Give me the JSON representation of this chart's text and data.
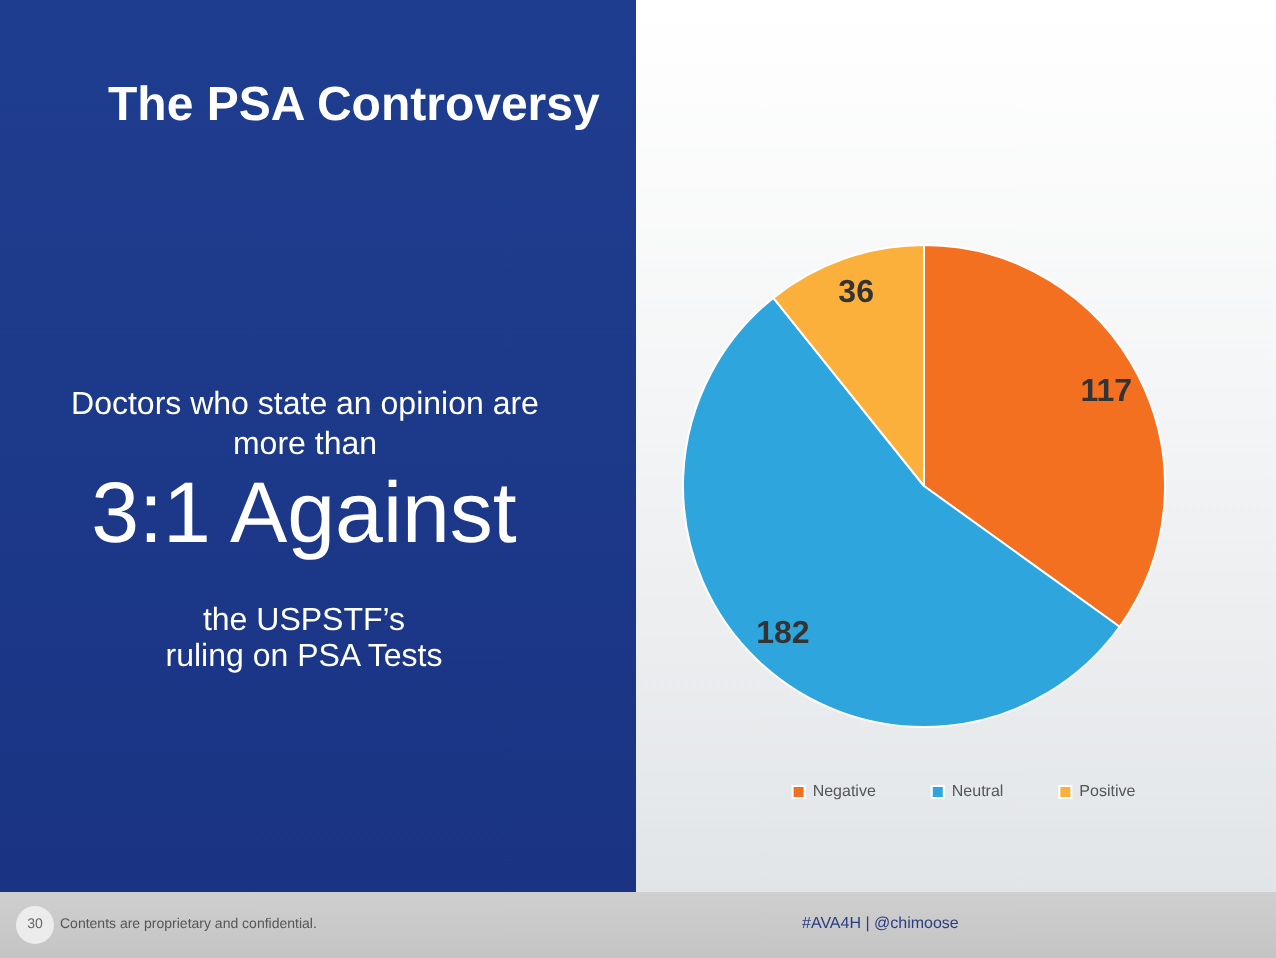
{
  "chart_data": {
    "type": "pie",
    "title": "The PSA Controversy",
    "categories": [
      "Negative",
      "Neutral",
      "Positive"
    ],
    "values": [
      117,
      182,
      36
    ],
    "colors": [
      "#f37021",
      "#2ea6dd",
      "#fbb03b"
    ],
    "data_labels": true,
    "legend": "bottom",
    "annotations": [
      "Doctors who state an opinion are more than",
      "3:1 Against",
      "the USPSTF’s\nruling on PSA Tests",
      "30",
      "Contents are proprietary and confidential.",
      "#AVA4H | @chimoose"
    ]
  }
}
